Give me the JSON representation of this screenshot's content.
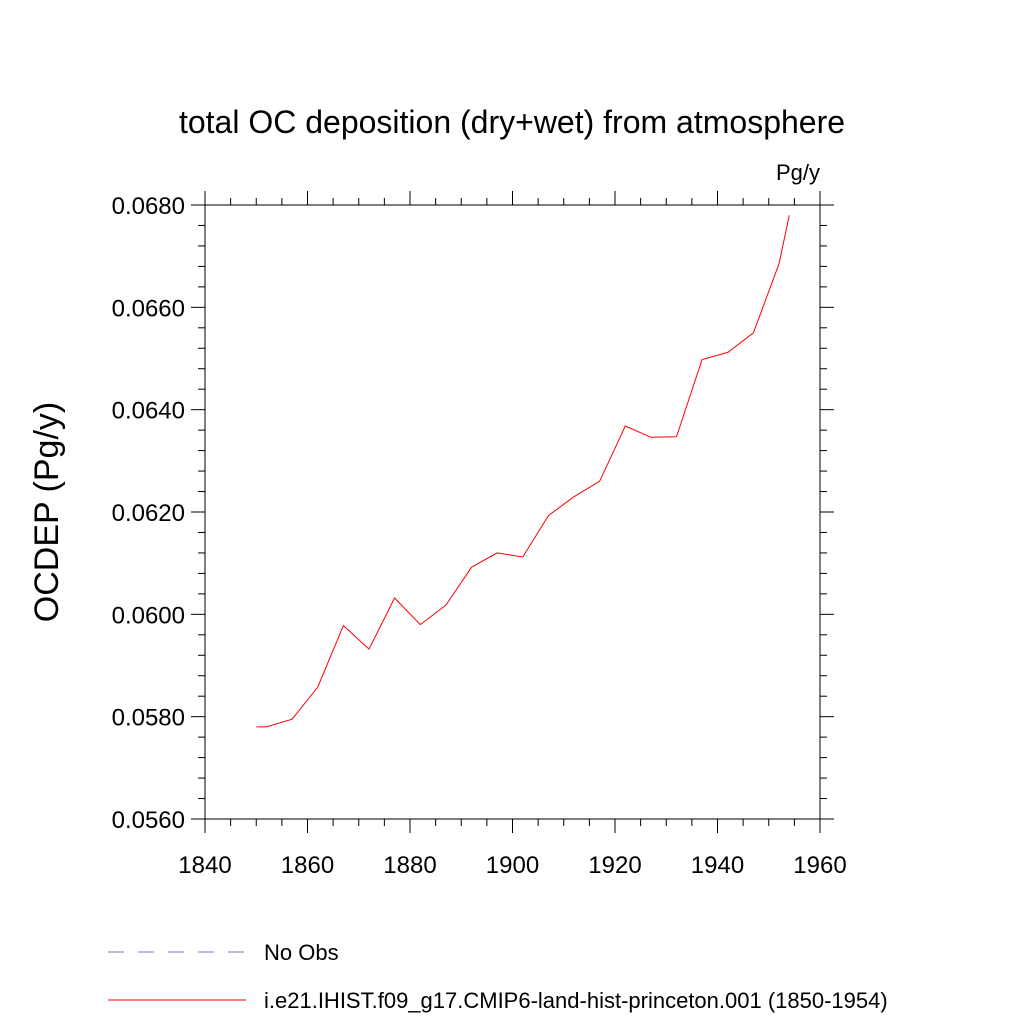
{
  "chart_data": {
    "type": "line",
    "title": "total OC deposition (dry+wet) from atmosphere",
    "units": "Pg/y",
    "xlabel": "",
    "ylabel": "OCDEP  (Pg/y)",
    "xlim": [
      1840,
      1960
    ],
    "ylim": [
      0.056,
      0.068
    ],
    "x_ticks": [
      "1840",
      "1860",
      "1880",
      "1900",
      "1920",
      "1940",
      "1960"
    ],
    "y_ticks": [
      "0.0560",
      "0.0580",
      "0.0600",
      "0.0620",
      "0.0640",
      "0.0660",
      "0.0680"
    ],
    "grid": false,
    "legend_position": "bottom",
    "series": [
      {
        "name": "i.e21.IHIST.f09_g17.CMIP6-land-hist-princeton.001 (1850-1954)",
        "color": "#ff0000",
        "style": "solid",
        "x": [
          1850,
          1852,
          1857,
          1862,
          1867,
          1872,
          1877,
          1882,
          1887,
          1892,
          1897,
          1902,
          1907,
          1912,
          1917,
          1922,
          1927,
          1932,
          1937,
          1942,
          1947,
          1952,
          1954
        ],
        "y": [
          0.0578,
          0.0578,
          0.05795,
          0.05858,
          0.05978,
          0.05932,
          0.06032,
          0.0598,
          0.06018,
          0.06092,
          0.0612,
          0.06112,
          0.06193,
          0.0623,
          0.0626,
          0.06368,
          0.06346,
          0.06347,
          0.06498,
          0.06512,
          0.0655,
          0.06685,
          0.0678
        ]
      }
    ],
    "legend": [
      {
        "label": "No Obs",
        "color": "#7b6fd6",
        "style": "dashed"
      },
      {
        "label": "i.e21.IHIST.f09_g17.CMIP6-land-hist-princeton.001 (1850-1954)",
        "color": "#ff0000",
        "style": "solid"
      }
    ]
  }
}
